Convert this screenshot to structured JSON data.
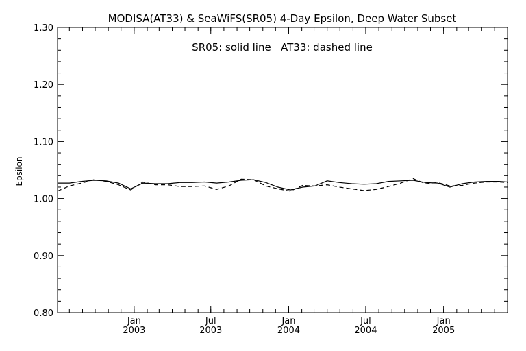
{
  "chart_data": {
    "type": "line",
    "title": "MODISA(AT33) & SeaWiFS(SR05) 4-Day Epsilon, Deep Water Subset",
    "annotation": "SR05: solid line   AT33: dashed line",
    "ylabel": "Epsilon",
    "xlabel": "",
    "ylim": [
      0.8,
      1.3
    ],
    "xlim": [
      "2002-07-04",
      "2005-06-01"
    ],
    "y_ticks": [
      "0.80",
      "0.90",
      "1.00",
      "1.10",
      "1.20",
      "1.30"
    ],
    "x_ticks": [
      {
        "date": "2003-01-01",
        "month": "Jan",
        "year": "2003"
      },
      {
        "date": "2003-07-01",
        "month": "Jul",
        "year": "2003"
      },
      {
        "date": "2004-01-01",
        "month": "Jan",
        "year": "2004"
      },
      {
        "date": "2004-07-01",
        "month": "Jul",
        "year": "2004"
      },
      {
        "date": "2005-01-01",
        "month": "Jan",
        "year": "2005"
      }
    ],
    "series": [
      {
        "name": "SR05",
        "style": "solid",
        "points": [
          [
            "2002-07-04",
            1.027
          ],
          [
            "2002-08-01",
            1.027
          ],
          [
            "2002-08-30",
            1.03
          ],
          [
            "2002-09-28",
            1.032
          ],
          [
            "2002-10-27",
            1.031
          ],
          [
            "2002-11-25",
            1.027
          ],
          [
            "2002-12-24",
            1.017
          ],
          [
            "2003-01-22",
            1.027
          ],
          [
            "2003-02-20",
            1.026
          ],
          [
            "2003-03-21",
            1.026
          ],
          [
            "2003-04-19",
            1.028
          ],
          [
            "2003-05-18",
            1.028
          ],
          [
            "2003-06-16",
            1.029
          ],
          [
            "2003-07-15",
            1.027
          ],
          [
            "2003-08-13",
            1.029
          ],
          [
            "2003-09-11",
            1.032
          ],
          [
            "2003-10-10",
            1.033
          ],
          [
            "2003-11-08",
            1.028
          ],
          [
            "2003-12-07",
            1.02
          ],
          [
            "2004-01-05",
            1.015
          ],
          [
            "2004-02-03",
            1.02
          ],
          [
            "2004-03-03",
            1.022
          ],
          [
            "2004-04-01",
            1.031
          ],
          [
            "2004-04-30",
            1.028
          ],
          [
            "2004-05-29",
            1.026
          ],
          [
            "2004-06-27",
            1.025
          ],
          [
            "2004-07-26",
            1.026
          ],
          [
            "2004-08-24",
            1.03
          ],
          [
            "2004-09-22",
            1.031
          ],
          [
            "2004-10-21",
            1.032
          ],
          [
            "2004-11-19",
            1.028
          ],
          [
            "2004-12-18",
            1.027
          ],
          [
            "2005-01-16",
            1.02
          ],
          [
            "2005-02-14",
            1.026
          ],
          [
            "2005-03-15",
            1.029
          ],
          [
            "2005-04-13",
            1.03
          ],
          [
            "2005-05-12",
            1.03
          ],
          [
            "2005-06-01",
            1.029
          ]
        ]
      },
      {
        "name": "AT33",
        "style": "dashed",
        "points": [
          [
            "2002-07-04",
            1.013
          ],
          [
            "2002-08-01",
            1.022
          ],
          [
            "2002-08-30",
            1.027
          ],
          [
            "2002-09-28",
            1.033
          ],
          [
            "2002-10-27",
            1.03
          ],
          [
            "2002-11-25",
            1.024
          ],
          [
            "2002-12-24",
            1.015
          ],
          [
            "2003-01-22",
            1.029
          ],
          [
            "2003-02-20",
            1.024
          ],
          [
            "2003-03-21",
            1.024
          ],
          [
            "2003-04-19",
            1.021
          ],
          [
            "2003-05-18",
            1.021
          ],
          [
            "2003-06-16",
            1.022
          ],
          [
            "2003-07-15",
            1.016
          ],
          [
            "2003-08-13",
            1.022
          ],
          [
            "2003-09-11",
            1.034
          ],
          [
            "2003-10-10",
            1.033
          ],
          [
            "2003-11-08",
            1.022
          ],
          [
            "2003-12-07",
            1.017
          ],
          [
            "2004-01-05",
            1.013
          ],
          [
            "2004-02-03",
            1.023
          ],
          [
            "2004-03-03",
            1.022
          ],
          [
            "2004-04-01",
            1.024
          ],
          [
            "2004-04-30",
            1.02
          ],
          [
            "2004-05-29",
            1.017
          ],
          [
            "2004-06-27",
            1.014
          ],
          [
            "2004-07-26",
            1.016
          ],
          [
            "2004-08-24",
            1.021
          ],
          [
            "2004-09-22",
            1.027
          ],
          [
            "2004-10-21",
            1.035
          ],
          [
            "2004-11-19",
            1.026
          ],
          [
            "2004-12-18",
            1.028
          ],
          [
            "2005-01-16",
            1.022
          ],
          [
            "2005-02-14",
            1.023
          ],
          [
            "2005-03-15",
            1.027
          ],
          [
            "2005-04-13",
            1.029
          ],
          [
            "2005-05-12",
            1.029
          ],
          [
            "2005-06-01",
            1.028
          ]
        ]
      }
    ]
  }
}
